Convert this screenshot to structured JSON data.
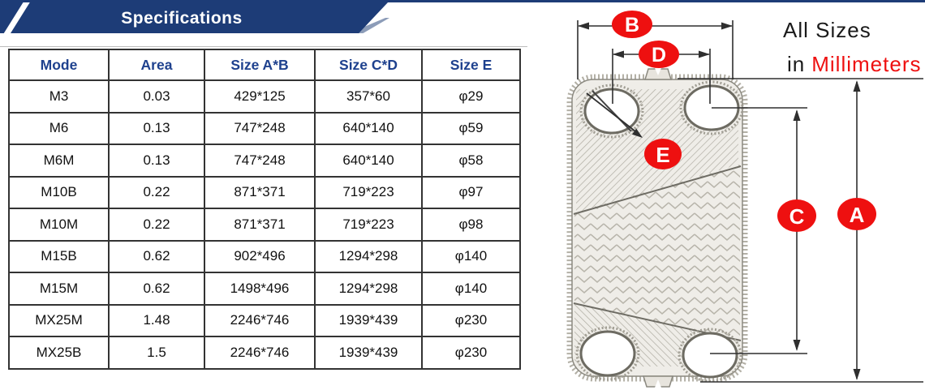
{
  "banner": {
    "title": "Specifications"
  },
  "note": {
    "line1": "All Sizes",
    "line2_prefix": "in",
    "line2_highlight": "Millimeters"
  },
  "table": {
    "headers": [
      "Mode",
      "Area",
      "Size A*B",
      "Size C*D",
      "Size E"
    ],
    "rows": [
      [
        "M3",
        "0.03",
        "429*125",
        "357*60",
        "φ29"
      ],
      [
        "M6",
        "0.13",
        "747*248",
        "640*140",
        "φ59"
      ],
      [
        "M6M",
        "0.13",
        "747*248",
        "640*140",
        "φ58"
      ],
      [
        "M10B",
        "0.22",
        "871*371",
        "719*223",
        "φ97"
      ],
      [
        "M10M",
        "0.22",
        "871*371",
        "719*223",
        "φ98"
      ],
      [
        "M15B",
        "0.62",
        "902*496",
        "1294*298",
        "φ140"
      ],
      [
        "M15M",
        "0.62",
        "1498*496",
        "1294*298",
        "φ140"
      ],
      [
        "MX25M",
        "1.48",
        "2246*746",
        "1939*439",
        "φ230"
      ],
      [
        "MX25B",
        "1.5",
        "2246*746",
        "1939*439",
        "φ230"
      ]
    ]
  },
  "diagram": {
    "labels": {
      "a": "A",
      "b": "B",
      "c": "C",
      "d": "D",
      "e": "E"
    }
  },
  "colors": {
    "navy_banner": "#1d3c77",
    "header_text": "#1e418e",
    "label_red": "#ee1010",
    "table_border": "#333333"
  }
}
